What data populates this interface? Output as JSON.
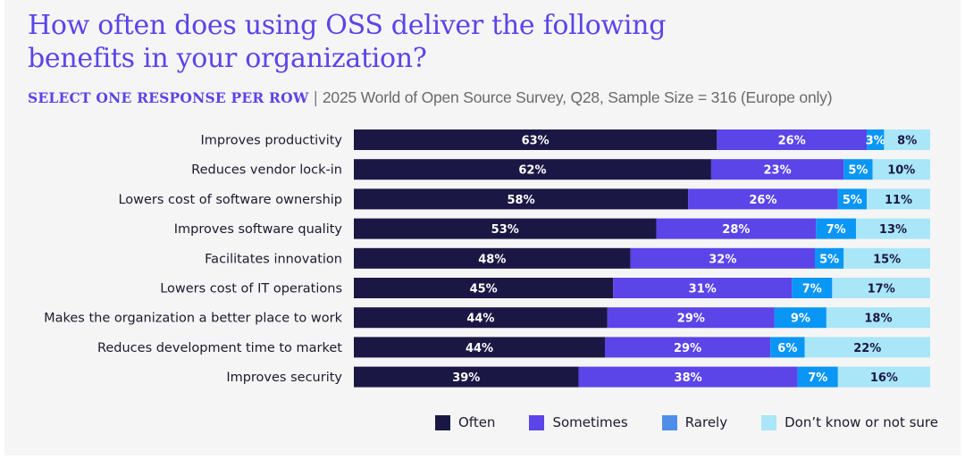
{
  "header": {
    "title_line1": "How often does using OSS deliver the following",
    "title_line2": "benefits in your organization?",
    "subtitle_lead": "SELECT ONE RESPONSE PER ROW",
    "subtitle_sep": " | ",
    "subtitle_source": "2025 World of Open Source Survey, Q28, Sample Size = 316 (Europe only)"
  },
  "chart_data": {
    "type": "bar",
    "orientation": "horizontal",
    "stacked": true,
    "normalized": true,
    "title": "How often does using OSS deliver the following benefits in your organization?",
    "subtitle": "SELECT ONE RESPONSE PER ROW | 2025 World of Open Source Survey, Q28, Sample Size = 316 (Europe only)",
    "xlabel": "",
    "ylabel": "",
    "xlim": [
      0,
      100
    ],
    "unit": "%",
    "grid": false,
    "legend_position": "bottom-right",
    "categories": [
      "Improves productivity",
      "Reduces vendor lock-in",
      "Lowers cost of software ownership",
      "Improves software quality",
      "Facilitates innovation",
      "Lowers cost of IT operations",
      "Makes the organization a better place to work",
      "Reduces development time to market",
      "Improves security"
    ],
    "series": [
      {
        "name": "Often",
        "color": "#1b1745",
        "label_color": "#ffffff",
        "values": [
          63,
          62,
          58,
          53,
          48,
          45,
          44,
          44,
          39
        ]
      },
      {
        "name": "Sometimes",
        "color": "#5b44e8",
        "label_color": "#ffffff",
        "values": [
          26,
          23,
          26,
          28,
          32,
          31,
          29,
          29,
          38
        ]
      },
      {
        "name": "Rarely",
        "color": "#0a96f5",
        "legend_color": "#4f8ee8",
        "label_color": "#ffffff",
        "values": [
          3,
          5,
          5,
          7,
          5,
          7,
          9,
          6,
          7
        ]
      },
      {
        "name": "Don’t know or not sure",
        "color": "#a9e6f7",
        "label_color": "#1b1745",
        "values": [
          8,
          10,
          11,
          13,
          15,
          17,
          18,
          22,
          16
        ]
      }
    ]
  }
}
